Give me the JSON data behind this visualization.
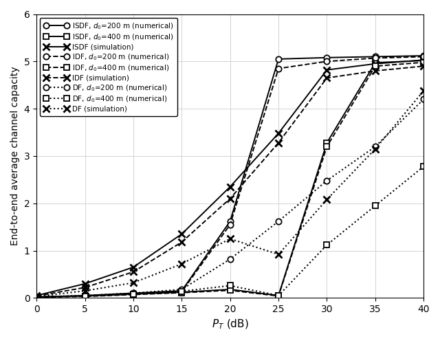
{
  "PT_dB": [
    0,
    5,
    10,
    15,
    20,
    25,
    30,
    35,
    40
  ],
  "ISDF_200_num": [
    0.02,
    0.05,
    0.1,
    0.15,
    1.62,
    5.05,
    5.08,
    5.1,
    5.12
  ],
  "ISDF_400_num": [
    0.02,
    0.04,
    0.08,
    0.12,
    0.18,
    0.05,
    3.28,
    4.97,
    5.02
  ],
  "ISDF_sim": [
    0.05,
    0.3,
    0.65,
    1.35,
    2.35,
    3.48,
    4.82,
    4.95,
    5.03
  ],
  "IDF_200_num": [
    0.02,
    0.04,
    0.09,
    0.13,
    1.55,
    4.85,
    5.0,
    5.07,
    5.1
  ],
  "IDF_400_num": [
    0.02,
    0.03,
    0.07,
    0.11,
    0.16,
    0.04,
    3.2,
    4.9,
    4.98
  ],
  "IDF_sim": [
    0.04,
    0.22,
    0.55,
    1.18,
    2.1,
    3.28,
    4.65,
    4.8,
    4.9
  ],
  "DF_200_num": [
    0.02,
    0.05,
    0.1,
    0.18,
    0.82,
    1.62,
    2.48,
    3.2,
    4.2
  ],
  "DF_400_num": [
    0.02,
    0.04,
    0.08,
    0.14,
    0.26,
    0.05,
    1.12,
    1.95,
    2.78
  ],
  "DF_sim": [
    0.03,
    0.15,
    0.32,
    0.72,
    1.25,
    0.92,
    2.08,
    3.15,
    4.38
  ],
  "xlim": [
    0,
    40
  ],
  "ylim": [
    0,
    6
  ],
  "xlabel": "$P_T$ (dB)",
  "ylabel": "End-to-end average channel capacity",
  "xticks": [
    0,
    5,
    10,
    15,
    20,
    25,
    30,
    35,
    40
  ],
  "yticks": [
    0,
    1,
    2,
    3,
    4,
    5,
    6
  ],
  "legend_labels": [
    "ISDF, $d_0$=200 m (numerical)",
    "ISDF, $d_0$=400 m (numerical)",
    "ISDF (simulation)",
    "IDF, $d_0$=200 m (numerical)",
    "IDF, $d_0$=400 m (numerical)",
    "IDF (simulation)",
    "DF, $d_0$=200 m (numerical)",
    "DF, $d_0$=400 m (numerical)",
    "DF (simulation)"
  ]
}
